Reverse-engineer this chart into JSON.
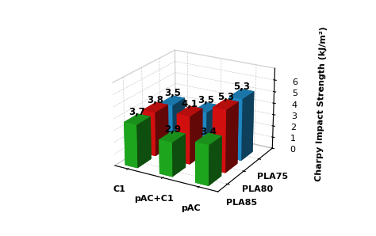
{
  "categories": [
    "C1",
    "pAC+C1",
    "pAC"
  ],
  "series_labels": [
    "PLA85",
    "PLA80",
    "PLA75"
  ],
  "values": {
    "PLA85": [
      3.7,
      2.9,
      3.4
    ],
    "PLA80": [
      3.8,
      4.1,
      5.3
    ],
    "PLA75": [
      3.5,
      3.5,
      5.3
    ]
  },
  "colors": {
    "PLA85": "#22bb22",
    "PLA80": "#ee1111",
    "PLA75": "#2299dd"
  },
  "ylabel": "Charpy Impact Strength (kJ/m²)",
  "zlim": [
    0,
    7
  ],
  "zticks": [
    0,
    1,
    2,
    3,
    4,
    5,
    6
  ],
  "bar_width": 0.55,
  "bar_depth": 0.42,
  "label_fontsize": 8.5,
  "tick_fontsize": 8,
  "axis_label_fontsize": 8,
  "background_color": "#ffffff",
  "elev": 22,
  "azim": -60
}
